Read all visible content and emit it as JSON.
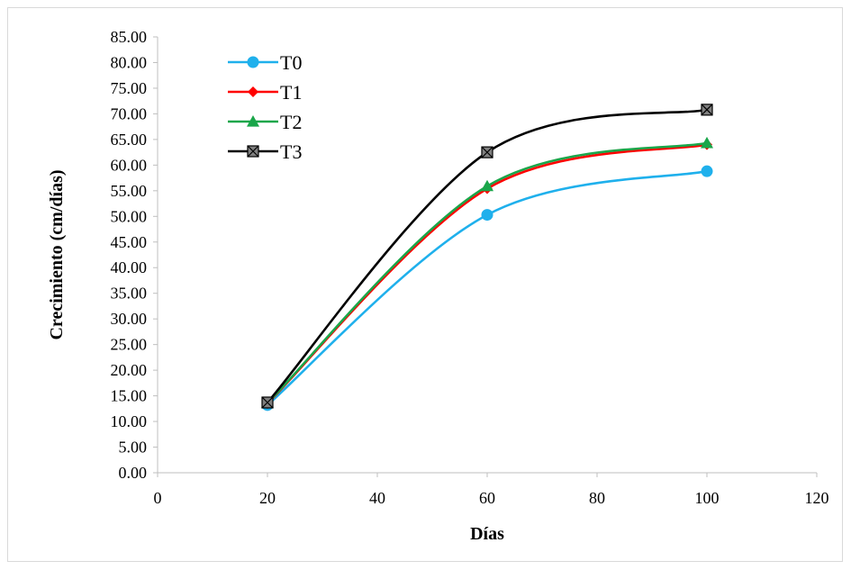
{
  "chart_data": {
    "type": "line",
    "xlabel": "Días",
    "ylabel": "Crecimiento (cm/días)",
    "xlim": [
      0,
      120
    ],
    "ylim": [
      0,
      85
    ],
    "xticks": [
      "0",
      "20",
      "40",
      "60",
      "80",
      "100",
      "120"
    ],
    "yticks": [
      "0.00",
      "5.00",
      "10.00",
      "15.00",
      "20.00",
      "25.00",
      "30.00",
      "35.00",
      "40.00",
      "45.00",
      "50.00",
      "55.00",
      "60.00",
      "65.00",
      "70.00",
      "75.00",
      "80.00",
      "85.00"
    ],
    "x": [
      20,
      60,
      100
    ],
    "smooth": true,
    "grid": false,
    "legend_position": "top-left",
    "series": [
      {
        "name": "T0",
        "values": [
          13.2,
          50.3,
          58.8
        ],
        "color": "#1fb0ec",
        "marker": "circle"
      },
      {
        "name": "T1",
        "values": [
          13.5,
          55.4,
          64.0
        ],
        "color": "#ff0000",
        "marker": "diamond"
      },
      {
        "name": "T2",
        "values": [
          13.6,
          55.9,
          64.3
        ],
        "color": "#1aa64a",
        "marker": "triangle"
      },
      {
        "name": "T3",
        "values": [
          13.7,
          62.5,
          70.8
        ],
        "color": "#000000",
        "marker": "square-x"
      }
    ]
  }
}
